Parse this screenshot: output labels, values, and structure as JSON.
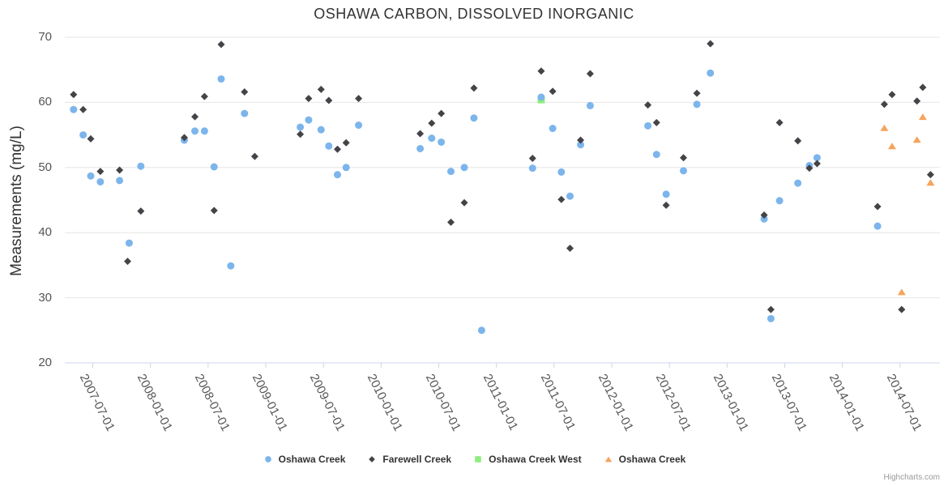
{
  "chart_data": {
    "type": "scatter",
    "title": "OSHAWA CARBON, DISSOLVED INORGANIC",
    "ylabel": "Measurements (mg/L)",
    "ylim": [
      20,
      70
    ],
    "y_ticks": [
      70,
      60,
      50,
      40,
      30,
      20
    ],
    "x_ticks": [
      "2007-07-01",
      "2008-01-01",
      "2008-07-01",
      "2009-01-01",
      "2009-07-01",
      "2010-01-01",
      "2010-07-01",
      "2011-01-01",
      "2011-07-01",
      "2012-01-01",
      "2012-07-01",
      "2013-01-01",
      "2013-07-01",
      "2014-01-01",
      "2014-07-01"
    ],
    "grid": "horizontal",
    "legend_position": "bottom",
    "credits": "Highcharts.com",
    "colors": {
      "grid": "#e6e6e6",
      "axis": "#ccd6eb",
      "title_text": "#333333",
      "label_text": "#555555",
      "legend_text": "#333333"
    },
    "render_order": [
      2,
      0,
      1,
      3
    ],
    "series": [
      {
        "name": "Oshawa Creek",
        "slug": "oshawa-creek-blue",
        "marker": "circle",
        "color": "#7cb5ec",
        "data": [
          [
            "2007-05-01",
            58.9
          ],
          [
            "2007-06-01",
            55.0
          ],
          [
            "2007-06-25",
            48.7
          ],
          [
            "2007-07-25",
            47.8
          ],
          [
            "2007-09-25",
            48.0
          ],
          [
            "2007-10-25",
            38.4
          ],
          [
            "2007-12-01",
            50.2
          ],
          [
            "2008-04-17",
            54.2
          ],
          [
            "2008-05-20",
            55.6
          ],
          [
            "2008-06-20",
            55.6
          ],
          [
            "2008-07-20",
            50.1
          ],
          [
            "2008-08-12",
            63.6
          ],
          [
            "2008-09-12",
            34.9
          ],
          [
            "2008-10-25",
            58.3
          ],
          [
            "2009-04-19",
            56.2
          ],
          [
            "2009-05-15",
            57.3
          ],
          [
            "2009-06-24",
            55.8
          ],
          [
            "2009-07-18",
            53.3
          ],
          [
            "2009-08-15",
            48.9
          ],
          [
            "2009-09-12",
            50.0
          ],
          [
            "2009-10-21",
            56.5
          ],
          [
            "2010-05-03",
            52.9
          ],
          [
            "2010-06-09",
            54.5
          ],
          [
            "2010-07-09",
            53.9
          ],
          [
            "2010-08-09",
            49.4
          ],
          [
            "2010-09-21",
            50.0
          ],
          [
            "2010-10-21",
            57.6
          ],
          [
            "2010-11-15",
            25.0
          ],
          [
            "2011-04-24",
            49.9
          ],
          [
            "2011-05-21",
            60.8
          ],
          [
            "2011-06-27",
            56.0
          ],
          [
            "2011-07-24",
            49.3
          ],
          [
            "2011-08-21",
            45.6
          ],
          [
            "2011-09-24",
            53.5
          ],
          [
            "2011-10-24",
            59.5
          ],
          [
            "2012-04-24",
            56.4
          ],
          [
            "2012-05-21",
            52.0
          ],
          [
            "2012-06-21",
            45.9
          ],
          [
            "2012-08-15",
            49.5
          ],
          [
            "2012-09-27",
            59.7
          ],
          [
            "2012-11-09",
            64.5
          ],
          [
            "2013-04-27",
            42.1
          ],
          [
            "2013-05-18",
            26.8
          ],
          [
            "2013-06-15",
            44.9
          ],
          [
            "2013-08-12",
            47.6
          ],
          [
            "2013-09-18",
            50.3
          ],
          [
            "2013-10-12",
            51.5
          ],
          [
            "2014-04-21",
            41.0
          ]
        ]
      },
      {
        "name": "Farewell Creek",
        "slug": "farewell-creek",
        "marker": "diamond",
        "color": "#434348",
        "data": [
          [
            "2007-05-01",
            61.2
          ],
          [
            "2007-06-01",
            58.9
          ],
          [
            "2007-06-25",
            54.4
          ],
          [
            "2007-07-25",
            49.4
          ],
          [
            "2007-09-25",
            49.6
          ],
          [
            "2007-10-20",
            35.6
          ],
          [
            "2007-12-01",
            43.3
          ],
          [
            "2008-04-17",
            54.6
          ],
          [
            "2008-05-20",
            57.8
          ],
          [
            "2008-06-20",
            60.9
          ],
          [
            "2008-07-20",
            43.4
          ],
          [
            "2008-08-12",
            68.9
          ],
          [
            "2008-10-25",
            61.6
          ],
          [
            "2008-11-27",
            51.7
          ],
          [
            "2009-04-19",
            55.1
          ],
          [
            "2009-05-15",
            60.6
          ],
          [
            "2009-06-24",
            62.0
          ],
          [
            "2009-07-18",
            60.3
          ],
          [
            "2009-08-15",
            52.8
          ],
          [
            "2009-09-12",
            53.8
          ],
          [
            "2009-10-21",
            60.6
          ],
          [
            "2010-05-03",
            55.2
          ],
          [
            "2010-06-09",
            56.8
          ],
          [
            "2010-07-09",
            58.3
          ],
          [
            "2010-08-09",
            41.6
          ],
          [
            "2010-09-21",
            44.6
          ],
          [
            "2010-10-21",
            62.2
          ],
          [
            "2011-04-24",
            51.4
          ],
          [
            "2011-05-21",
            64.8
          ],
          [
            "2011-06-27",
            61.7
          ],
          [
            "2011-07-24",
            45.1
          ],
          [
            "2011-08-21",
            37.6
          ],
          [
            "2011-09-24",
            54.2
          ],
          [
            "2011-10-24",
            64.4
          ],
          [
            "2012-04-24",
            59.6
          ],
          [
            "2012-05-21",
            56.9
          ],
          [
            "2012-06-21",
            44.2
          ],
          [
            "2012-08-15",
            51.5
          ],
          [
            "2012-09-27",
            61.4
          ],
          [
            "2012-11-09",
            69.0
          ],
          [
            "2013-04-27",
            42.7
          ],
          [
            "2013-05-18",
            28.2
          ],
          [
            "2013-06-15",
            56.9
          ],
          [
            "2013-08-12",
            54.1
          ],
          [
            "2013-09-18",
            49.9
          ],
          [
            "2013-10-12",
            50.6
          ],
          [
            "2014-04-21",
            44.0
          ],
          [
            "2014-05-12",
            59.7
          ],
          [
            "2014-06-06",
            61.2
          ],
          [
            "2014-07-06",
            28.2
          ],
          [
            "2014-08-24",
            60.2
          ],
          [
            "2014-09-12",
            62.3
          ],
          [
            "2014-10-06",
            48.9
          ]
        ]
      },
      {
        "name": "Oshawa Creek West",
        "slug": "oshawa-creek-west",
        "marker": "square",
        "color": "#90ed7d",
        "data": [
          [
            "2011-05-21",
            60.4
          ]
        ]
      },
      {
        "name": "Oshawa Creek",
        "slug": "oshawa-creek-orange",
        "marker": "triangle",
        "color": "#f7a35c",
        "data": [
          [
            "2014-05-12",
            56.1
          ],
          [
            "2014-06-06",
            53.3
          ],
          [
            "2014-07-06",
            30.9
          ],
          [
            "2014-08-24",
            54.3
          ],
          [
            "2014-09-12",
            57.8
          ],
          [
            "2014-10-06",
            47.7
          ]
        ]
      }
    ]
  }
}
